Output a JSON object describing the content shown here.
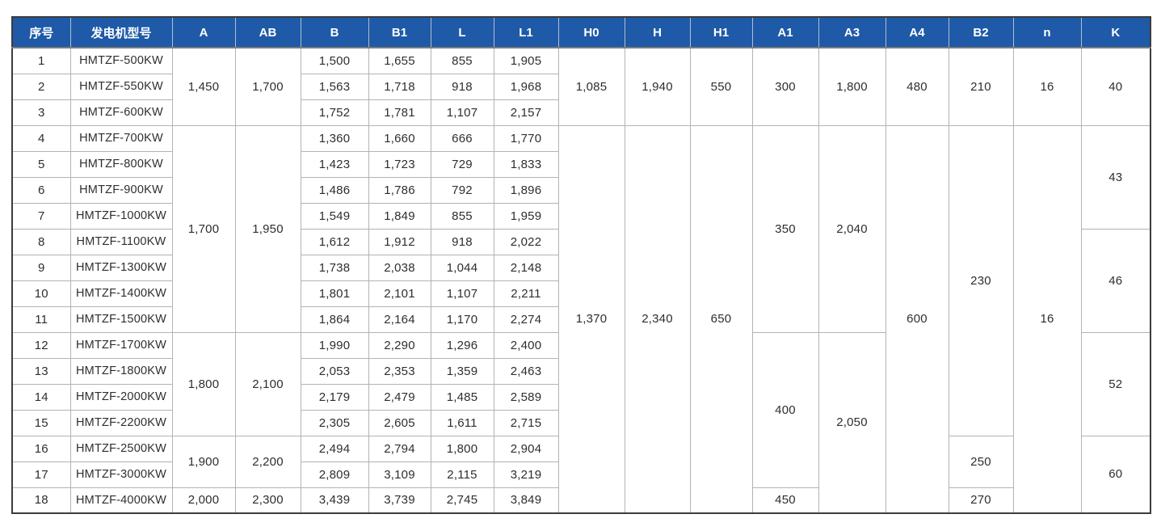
{
  "table": {
    "header_bg": "#1e5aa7",
    "header_fg": "#ffffff",
    "grid_color": "#b3b3b3",
    "outer_border_color": "#3c3c3c",
    "columns": [
      {
        "key": "xh",
        "label": "序号"
      },
      {
        "key": "model",
        "label": "发电机型号"
      },
      {
        "key": "A",
        "label": "A"
      },
      {
        "key": "AB",
        "label": "AB"
      },
      {
        "key": "B",
        "label": "B"
      },
      {
        "key": "B1",
        "label": "B1"
      },
      {
        "key": "L",
        "label": "L"
      },
      {
        "key": "L1",
        "label": "L1"
      },
      {
        "key": "H0",
        "label": "H0"
      },
      {
        "key": "H",
        "label": "H"
      },
      {
        "key": "H1",
        "label": "H1"
      },
      {
        "key": "A1",
        "label": "A1"
      },
      {
        "key": "A3",
        "label": "A3"
      },
      {
        "key": "A4",
        "label": "A4"
      },
      {
        "key": "B2",
        "label": "B2"
      },
      {
        "key": "n",
        "label": "n"
      },
      {
        "key": "K",
        "label": "K"
      }
    ],
    "rows": [
      {
        "cells": [
          {
            "col": "xh",
            "v": "1"
          },
          {
            "col": "model",
            "v": "HMTZF-500KW"
          },
          {
            "col": "A",
            "v": "1,450",
            "rs": 3
          },
          {
            "col": "AB",
            "v": "1,700",
            "rs": 3
          },
          {
            "col": "B",
            "v": "1,500"
          },
          {
            "col": "B1",
            "v": "1,655"
          },
          {
            "col": "L",
            "v": "855"
          },
          {
            "col": "L1",
            "v": "1,905"
          },
          {
            "col": "H0",
            "v": "1,085",
            "rs": 3
          },
          {
            "col": "H",
            "v": "1,940",
            "rs": 3
          },
          {
            "col": "H1",
            "v": "550",
            "rs": 3
          },
          {
            "col": "A1",
            "v": "300",
            "rs": 3
          },
          {
            "col": "A3",
            "v": "1,800",
            "rs": 3
          },
          {
            "col": "A4",
            "v": "480",
            "rs": 3
          },
          {
            "col": "B2",
            "v": "210",
            "rs": 3
          },
          {
            "col": "n",
            "v": "16",
            "rs": 3
          },
          {
            "col": "K",
            "v": "40",
            "rs": 3
          }
        ]
      },
      {
        "cells": [
          {
            "col": "xh",
            "v": "2"
          },
          {
            "col": "model",
            "v": "HMTZF-550KW"
          },
          {
            "col": "B",
            "v": "1,563"
          },
          {
            "col": "B1",
            "v": "1,718"
          },
          {
            "col": "L",
            "v": "918"
          },
          {
            "col": "L1",
            "v": "1,968"
          }
        ]
      },
      {
        "cells": [
          {
            "col": "xh",
            "v": "3"
          },
          {
            "col": "model",
            "v": "HMTZF-600KW"
          },
          {
            "col": "B",
            "v": "1,752"
          },
          {
            "col": "B1",
            "v": "1,781"
          },
          {
            "col": "L",
            "v": "1,107"
          },
          {
            "col": "L1",
            "v": "2,157"
          }
        ]
      },
      {
        "cells": [
          {
            "col": "xh",
            "v": "4"
          },
          {
            "col": "model",
            "v": "HMTZF-700KW"
          },
          {
            "col": "A",
            "v": "1,700",
            "rs": 8
          },
          {
            "col": "AB",
            "v": "1,950",
            "rs": 8
          },
          {
            "col": "B",
            "v": "1,360"
          },
          {
            "col": "B1",
            "v": "1,660"
          },
          {
            "col": "L",
            "v": "666"
          },
          {
            "col": "L1",
            "v": "1,770"
          },
          {
            "col": "H0",
            "v": "1,370",
            "rs": 15
          },
          {
            "col": "H",
            "v": "2,340",
            "rs": 15
          },
          {
            "col": "H1",
            "v": "650",
            "rs": 15
          },
          {
            "col": "A1",
            "v": "350",
            "rs": 8
          },
          {
            "col": "A3",
            "v": "2,040",
            "rs": 8
          },
          {
            "col": "A4",
            "v": "600",
            "rs": 15
          },
          {
            "col": "B2",
            "v": "230",
            "rs": 12
          },
          {
            "col": "n",
            "v": "16",
            "rs": 15
          },
          {
            "col": "K",
            "v": "43",
            "rs": 4
          }
        ]
      },
      {
        "cells": [
          {
            "col": "xh",
            "v": "5"
          },
          {
            "col": "model",
            "v": "HMTZF-800KW"
          },
          {
            "col": "B",
            "v": "1,423"
          },
          {
            "col": "B1",
            "v": "1,723"
          },
          {
            "col": "L",
            "v": "729"
          },
          {
            "col": "L1",
            "v": "1,833"
          }
        ]
      },
      {
        "cells": [
          {
            "col": "xh",
            "v": "6"
          },
          {
            "col": "model",
            "v": "HMTZF-900KW"
          },
          {
            "col": "B",
            "v": "1,486"
          },
          {
            "col": "B1",
            "v": "1,786"
          },
          {
            "col": "L",
            "v": "792"
          },
          {
            "col": "L1",
            "v": "1,896"
          }
        ]
      },
      {
        "cells": [
          {
            "col": "xh",
            "v": "7"
          },
          {
            "col": "model",
            "v": "HMTZF-1000KW"
          },
          {
            "col": "B",
            "v": "1,549"
          },
          {
            "col": "B1",
            "v": "1,849"
          },
          {
            "col": "L",
            "v": "855"
          },
          {
            "col": "L1",
            "v": "1,959"
          }
        ]
      },
      {
        "cells": [
          {
            "col": "xh",
            "v": "8"
          },
          {
            "col": "model",
            "v": "HMTZF-1100KW"
          },
          {
            "col": "B",
            "v": "1,612"
          },
          {
            "col": "B1",
            "v": "1,912"
          },
          {
            "col": "L",
            "v": "918"
          },
          {
            "col": "L1",
            "v": "2,022"
          },
          {
            "col": "K",
            "v": "46",
            "rs": 4
          }
        ]
      },
      {
        "cells": [
          {
            "col": "xh",
            "v": "9"
          },
          {
            "col": "model",
            "v": "HMTZF-1300KW"
          },
          {
            "col": "B",
            "v": "1,738"
          },
          {
            "col": "B1",
            "v": "2,038"
          },
          {
            "col": "L",
            "v": "1,044"
          },
          {
            "col": "L1",
            "v": "2,148"
          }
        ]
      },
      {
        "cells": [
          {
            "col": "xh",
            "v": "10"
          },
          {
            "col": "model",
            "v": "HMTZF-1400KW"
          },
          {
            "col": "B",
            "v": "1,801"
          },
          {
            "col": "B1",
            "v": "2,101"
          },
          {
            "col": "L",
            "v": "1,107"
          },
          {
            "col": "L1",
            "v": "2,211"
          }
        ]
      },
      {
        "cells": [
          {
            "col": "xh",
            "v": "11"
          },
          {
            "col": "model",
            "v": "HMTZF-1500KW"
          },
          {
            "col": "B",
            "v": "1,864"
          },
          {
            "col": "B1",
            "v": "2,164"
          },
          {
            "col": "L",
            "v": "1,170"
          },
          {
            "col": "L1",
            "v": "2,274"
          }
        ]
      },
      {
        "cells": [
          {
            "col": "xh",
            "v": "12"
          },
          {
            "col": "model",
            "v": "HMTZF-1700KW"
          },
          {
            "col": "A",
            "v": "1,800",
            "rs": 4
          },
          {
            "col": "AB",
            "v": "2,100",
            "rs": 4
          },
          {
            "col": "B",
            "v": "1,990"
          },
          {
            "col": "B1",
            "v": "2,290"
          },
          {
            "col": "L",
            "v": "1,296"
          },
          {
            "col": "L1",
            "v": "2,400"
          },
          {
            "col": "A1",
            "v": "400",
            "rs": 6
          },
          {
            "col": "A3",
            "v": "2,050",
            "rs": 7
          },
          {
            "col": "K",
            "v": "52",
            "rs": 4
          }
        ]
      },
      {
        "cells": [
          {
            "col": "xh",
            "v": "13"
          },
          {
            "col": "model",
            "v": "HMTZF-1800KW"
          },
          {
            "col": "B",
            "v": "2,053"
          },
          {
            "col": "B1",
            "v": "2,353"
          },
          {
            "col": "L",
            "v": "1,359"
          },
          {
            "col": "L1",
            "v": "2,463"
          }
        ]
      },
      {
        "cells": [
          {
            "col": "xh",
            "v": "14"
          },
          {
            "col": "model",
            "v": "HMTZF-2000KW"
          },
          {
            "col": "B",
            "v": "2,179"
          },
          {
            "col": "B1",
            "v": "2,479"
          },
          {
            "col": "L",
            "v": "1,485"
          },
          {
            "col": "L1",
            "v": "2,589"
          }
        ]
      },
      {
        "cells": [
          {
            "col": "xh",
            "v": "15"
          },
          {
            "col": "model",
            "v": "HMTZF-2200KW"
          },
          {
            "col": "B",
            "v": "2,305"
          },
          {
            "col": "B1",
            "v": "2,605"
          },
          {
            "col": "L",
            "v": "1,611"
          },
          {
            "col": "L1",
            "v": "2,715"
          }
        ]
      },
      {
        "cells": [
          {
            "col": "xh",
            "v": "16"
          },
          {
            "col": "model",
            "v": "HMTZF-2500KW"
          },
          {
            "col": "A",
            "v": "1,900",
            "rs": 2
          },
          {
            "col": "AB",
            "v": "2,200",
            "rs": 2
          },
          {
            "col": "B",
            "v": "2,494"
          },
          {
            "col": "B1",
            "v": "2,794"
          },
          {
            "col": "L",
            "v": "1,800"
          },
          {
            "col": "L1",
            "v": "2,904"
          },
          {
            "col": "B2",
            "v": "250",
            "rs": 2
          },
          {
            "col": "K",
            "v": "60",
            "rs": 3
          }
        ]
      },
      {
        "cells": [
          {
            "col": "xh",
            "v": "17"
          },
          {
            "col": "model",
            "v": "HMTZF-3000KW"
          },
          {
            "col": "B",
            "v": "2,809"
          },
          {
            "col": "B1",
            "v": "3,109"
          },
          {
            "col": "L",
            "v": "2,115"
          },
          {
            "col": "L1",
            "v": "3,219"
          }
        ]
      },
      {
        "cells": [
          {
            "col": "xh",
            "v": "18"
          },
          {
            "col": "model",
            "v": "HMTZF-4000KW"
          },
          {
            "col": "A",
            "v": "2,000"
          },
          {
            "col": "AB",
            "v": "2,300"
          },
          {
            "col": "B",
            "v": "3,439"
          },
          {
            "col": "B1",
            "v": "3,739"
          },
          {
            "col": "L",
            "v": "2,745"
          },
          {
            "col": "L1",
            "v": "3,849"
          },
          {
            "col": "A1",
            "v": "450"
          },
          {
            "col": "B2",
            "v": "270"
          }
        ]
      }
    ]
  }
}
